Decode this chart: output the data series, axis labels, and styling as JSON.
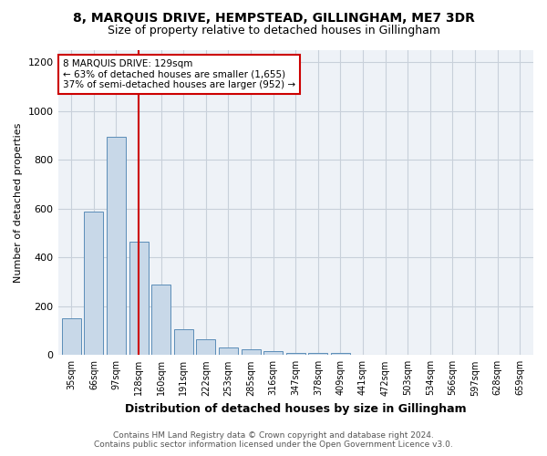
{
  "title_line1": "8, MARQUIS DRIVE, HEMPSTEAD, GILLINGHAM, ME7 3DR",
  "title_line2": "Size of property relative to detached houses in Gillingham",
  "xlabel": "Distribution of detached houses by size in Gillingham",
  "ylabel": "Number of detached properties",
  "footer_line1": "Contains HM Land Registry data © Crown copyright and database right 2024.",
  "footer_line2": "Contains public sector information licensed under the Open Government Licence v3.0.",
  "annotation_line1": "8 MARQUIS DRIVE: 129sqm",
  "annotation_line2": "← 63% of detached houses are smaller (1,655)",
  "annotation_line3": "37% of semi-detached houses are larger (952) →",
  "bar_labels": [
    "35sqm",
    "66sqm",
    "97sqm",
    "128sqm",
    "160sqm",
    "191sqm",
    "222sqm",
    "253sqm",
    "285sqm",
    "316sqm",
    "347sqm",
    "378sqm",
    "409sqm",
    "441sqm",
    "472sqm",
    "503sqm",
    "534sqm",
    "566sqm",
    "597sqm",
    "628sqm",
    "659sqm"
  ],
  "bar_values": [
    150,
    590,
    895,
    465,
    290,
    105,
    65,
    30,
    25,
    15,
    10,
    10,
    10,
    0,
    0,
    0,
    0,
    0,
    0,
    0,
    0
  ],
  "bar_color": "#c8d8e8",
  "bar_edge_color": "#5b8db8",
  "marker_index": 3,
  "marker_color": "#cc0000",
  "ylim": [
    0,
    1250
  ],
  "yticks": [
    0,
    200,
    400,
    600,
    800,
    1000,
    1200
  ],
  "background_color": "#ffffff",
  "plot_background_color": "#eef2f7",
  "grid_color": "#c8d0da",
  "title_fontsize": 10,
  "subtitle_fontsize": 9
}
